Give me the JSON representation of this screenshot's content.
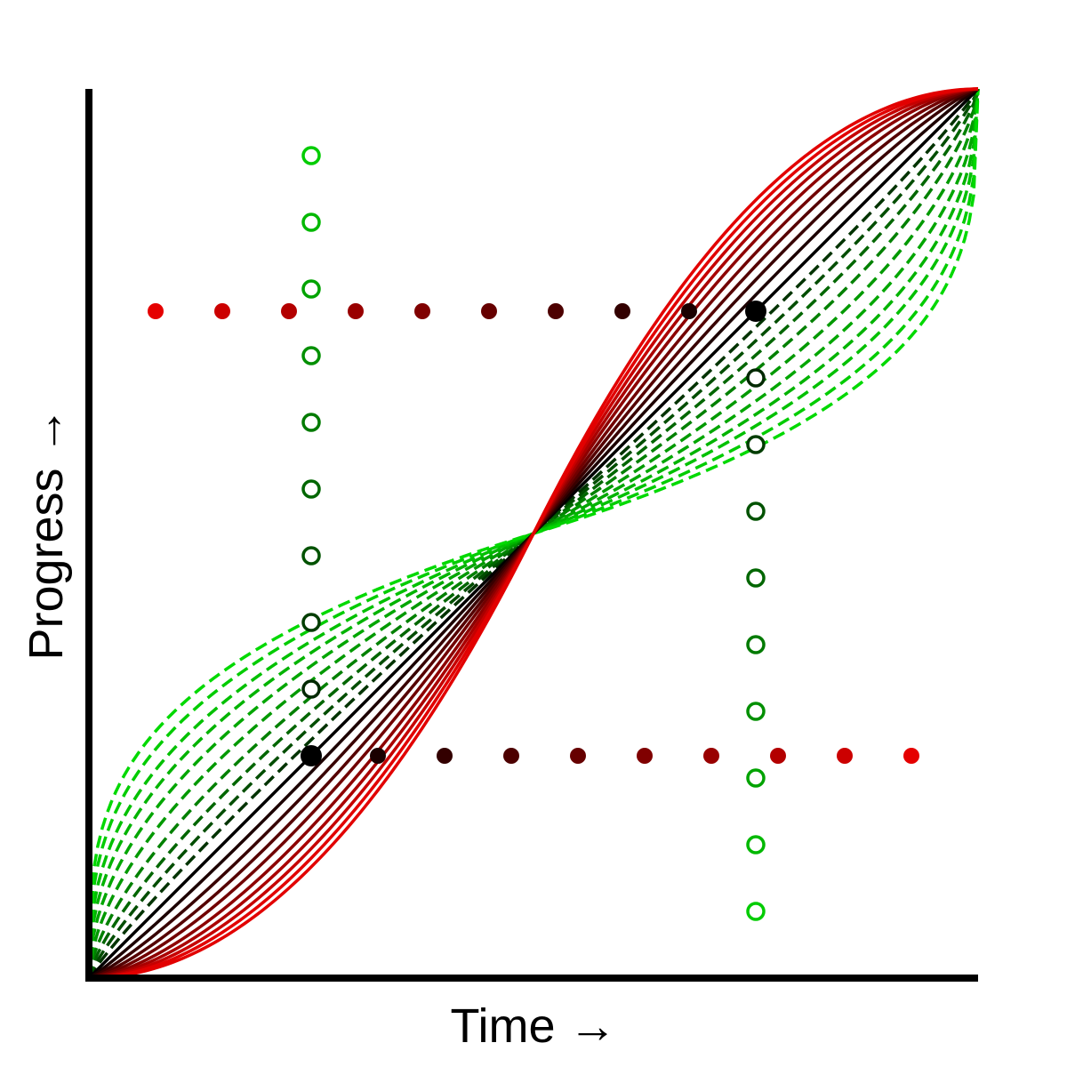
{
  "chart_data": {
    "type": "line",
    "title": "",
    "xlabel": "Time →",
    "ylabel": "Progress →",
    "xlim": [
      0,
      1
    ],
    "ylim": [
      0,
      1
    ],
    "grid": false,
    "legend": "none",
    "curves": {
      "description_free": true,
      "count_solid": 10,
      "count_dashed": 10,
      "midpoint": [
        0.5,
        0.5
      ],
      "solid_exponents": [
        1.0,
        1.11,
        1.22,
        1.33,
        1.44,
        1.56,
        1.67,
        1.78,
        1.89,
        2.0
      ],
      "dashed_exponents": [
        0.9,
        0.82,
        0.74,
        0.66,
        0.58,
        0.51,
        0.45,
        0.4,
        0.35,
        0.31
      ],
      "solid_colors": [
        "#000000",
        "#1c0000",
        "#380000",
        "#550000",
        "#710000",
        "#8d0000",
        "#aa0000",
        "#c60000",
        "#e20000",
        "#e20000"
      ],
      "dashed_colors": [
        "#003300",
        "#004d00",
        "#006600",
        "#008000",
        "#009900",
        "#00a600",
        "#00b300",
        "#00c000",
        "#00cc00",
        "#00d900"
      ]
    },
    "red_dots_top": {
      "y": 0.75,
      "x": [
        0.075,
        0.15,
        0.225,
        0.3,
        0.375,
        0.45,
        0.525,
        0.6,
        0.675,
        0.75
      ],
      "colors": [
        "#e50000",
        "#cc0000",
        "#b30000",
        "#990000",
        "#800000",
        "#660000",
        "#4d0000",
        "#330000",
        "#1a0000",
        "#000000"
      ]
    },
    "red_dots_bottom": {
      "y": 0.25,
      "x": [
        0.25,
        0.325,
        0.4,
        0.475,
        0.55,
        0.625,
        0.7,
        0.775,
        0.85,
        0.925
      ],
      "colors": [
        "#000000",
        "#1a0000",
        "#330000",
        "#4d0000",
        "#660000",
        "#800000",
        "#990000",
        "#b30000",
        "#cc0000",
        "#e50000"
      ]
    },
    "green_circles_left": {
      "x": 0.25,
      "y": [
        0.925,
        0.85,
        0.775,
        0.7,
        0.625,
        0.55,
        0.475,
        0.4,
        0.325
      ],
      "colors": [
        "#00cc00",
        "#00b800",
        "#00a300",
        "#008f00",
        "#007a00",
        "#006600",
        "#005200",
        "#003d00",
        "#002900"
      ]
    },
    "green_circles_right": {
      "x": 0.75,
      "y": [
        0.675,
        0.6,
        0.525,
        0.45,
        0.375,
        0.3,
        0.225,
        0.15,
        0.075
      ],
      "colors": [
        "#002900",
        "#003d00",
        "#005200",
        "#006600",
        "#007a00",
        "#008f00",
        "#00a300",
        "#00b800",
        "#00cc00"
      ]
    }
  }
}
